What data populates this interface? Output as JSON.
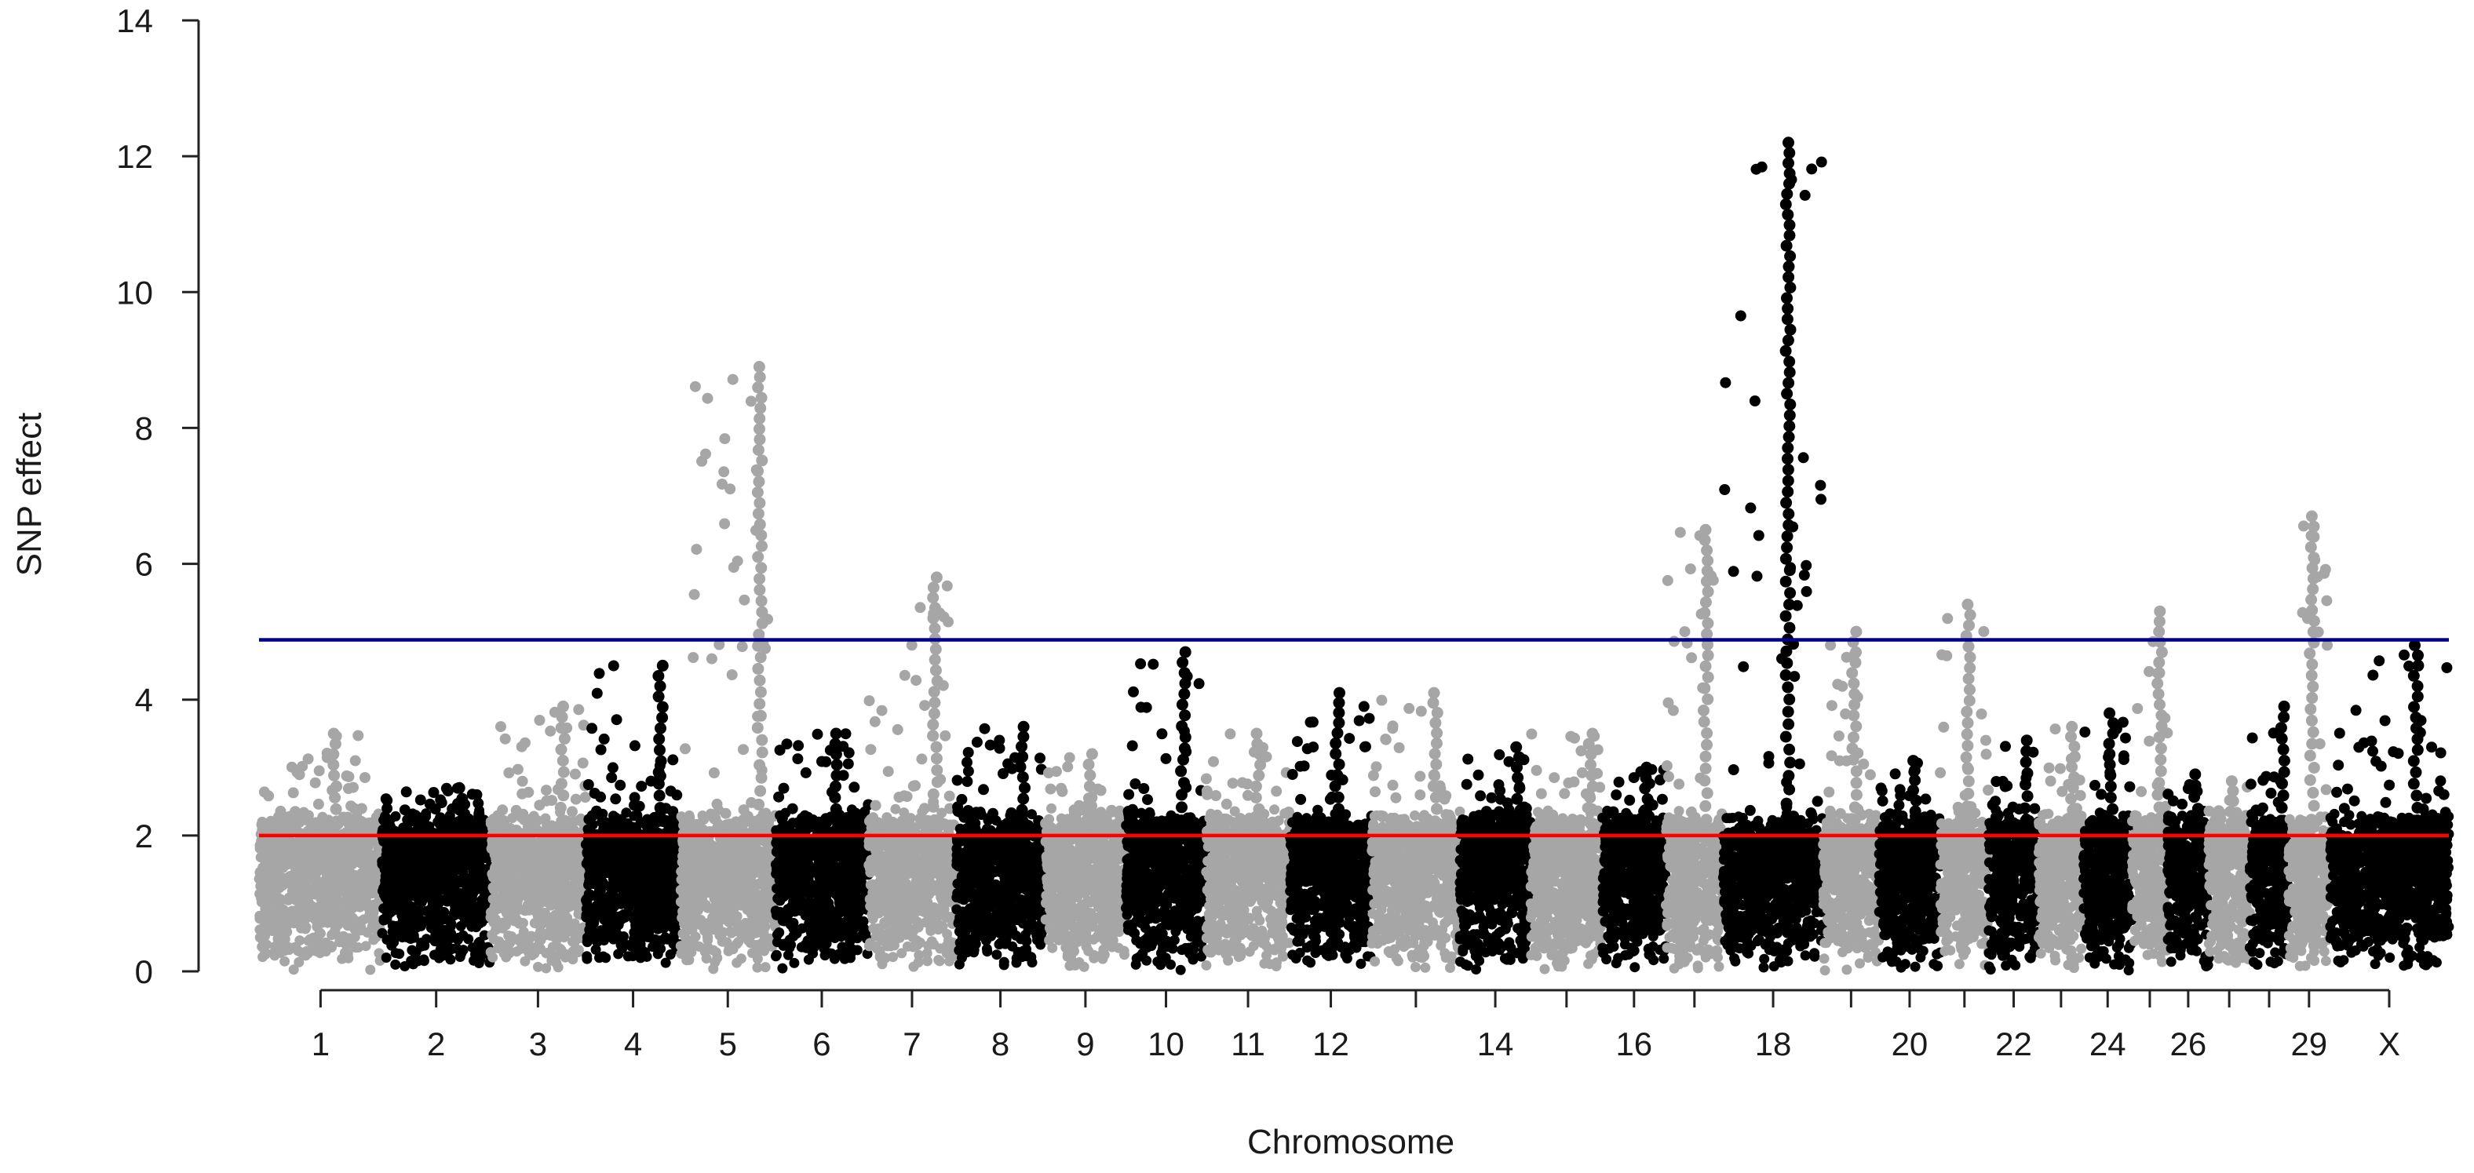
{
  "chart_data": {
    "type": "scatter",
    "title": "",
    "xlabel": "Chromosome",
    "ylabel": "SNP effect",
    "ylim": [
      0,
      14
    ],
    "y_ticks": [
      "0",
      "2",
      "4",
      "6",
      "8",
      "10",
      "12",
      "14"
    ],
    "grid": false,
    "legend": "none",
    "chromosomes": [
      {
        "chr": "1",
        "label": "1",
        "color": "#a6a6a6",
        "peak": 3.5
      },
      {
        "chr": "2",
        "label": "2",
        "color": "#000000",
        "peak": 2.7
      },
      {
        "chr": "3",
        "label": "3",
        "color": "#a6a6a6",
        "peak": 3.9
      },
      {
        "chr": "4",
        "label": "4",
        "color": "#000000",
        "peak": 4.5
      },
      {
        "chr": "5",
        "label": "5",
        "color": "#a6a6a6",
        "peak": 8.9
      },
      {
        "chr": "6",
        "label": "6",
        "color": "#000000",
        "peak": 3.5
      },
      {
        "chr": "7",
        "label": "7",
        "color": "#a6a6a6",
        "peak": 5.8
      },
      {
        "chr": "8",
        "label": "8",
        "color": "#000000",
        "peak": 3.6
      },
      {
        "chr": "9",
        "label": "9",
        "color": "#a6a6a6",
        "peak": 3.2
      },
      {
        "chr": "10",
        "label": "10",
        "color": "#000000",
        "peak": 4.7
      },
      {
        "chr": "11",
        "label": "11",
        "color": "#a6a6a6",
        "peak": 3.5
      },
      {
        "chr": "12",
        "label": "12",
        "color": "#000000",
        "peak": 4.1
      },
      {
        "chr": "13",
        "label": "",
        "color": "#a6a6a6",
        "peak": 4.1
      },
      {
        "chr": "14",
        "label": "14",
        "color": "#000000",
        "peak": 3.3
      },
      {
        "chr": "15",
        "label": "",
        "color": "#a6a6a6",
        "peak": 3.5
      },
      {
        "chr": "16",
        "label": "16",
        "color": "#000000",
        "peak": 3.0
      },
      {
        "chr": "17",
        "label": "",
        "color": "#a6a6a6",
        "peak": 6.5
      },
      {
        "chr": "18",
        "label": "18",
        "color": "#000000",
        "peak": 12.2
      },
      {
        "chr": "19",
        "label": "",
        "color": "#a6a6a6",
        "peak": 5.0
      },
      {
        "chr": "20",
        "label": "20",
        "color": "#000000",
        "peak": 3.1
      },
      {
        "chr": "21",
        "label": "",
        "color": "#a6a6a6",
        "peak": 5.4
      },
      {
        "chr": "22",
        "label": "22",
        "color": "#000000",
        "peak": 3.4
      },
      {
        "chr": "23",
        "label": "",
        "color": "#a6a6a6",
        "peak": 3.6
      },
      {
        "chr": "24",
        "label": "24",
        "color": "#000000",
        "peak": 3.8
      },
      {
        "chr": "25",
        "label": "",
        "color": "#a6a6a6",
        "peak": 5.3
      },
      {
        "chr": "26",
        "label": "26",
        "color": "#000000",
        "peak": 2.9
      },
      {
        "chr": "27",
        "label": "",
        "color": "#a6a6a6",
        "peak": 2.8
      },
      {
        "chr": "28",
        "label": "",
        "color": "#000000",
        "peak": 3.9
      },
      {
        "chr": "29",
        "label": "29",
        "color": "#a6a6a6",
        "peak": 6.7
      },
      {
        "chr": "X",
        "label": "X",
        "color": "#000000",
        "peak": 4.8
      }
    ],
    "reference_lines": [
      {
        "value": 4.88,
        "color": "#00008b"
      },
      {
        "value": 2.0,
        "color": "#ff0000"
      }
    ]
  }
}
